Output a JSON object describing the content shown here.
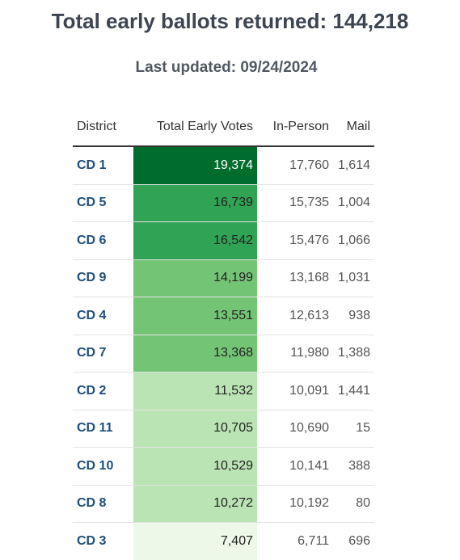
{
  "header": {
    "title": "Total early ballots returned: 144,218",
    "subtitle": "Last updated: 09/24/2024"
  },
  "colors": {
    "shade_darkest": "#006d2c",
    "shade_dark": "#31a354",
    "shade_mid": "#74c476",
    "shade_light": "#bae4b3",
    "shade_lightest": "#edf8e9",
    "text_on_dark": "#ffffff",
    "district_text": "#1f4e79"
  },
  "chart_data": {
    "type": "table",
    "title": "Total early ballots returned: 144,218",
    "subtitle": "Last updated: 09/24/2024",
    "columns": [
      "District",
      "Total Early Votes",
      "In-Person",
      "Mail"
    ],
    "rows": [
      {
        "district": "CD 1",
        "total": "19,374",
        "in_person": "17,760",
        "mail": "1,614",
        "total_value": 19374
      },
      {
        "district": "CD 5",
        "total": "16,739",
        "in_person": "15,735",
        "mail": "1,004",
        "total_value": 16739
      },
      {
        "district": "CD 6",
        "total": "16,542",
        "in_person": "15,476",
        "mail": "1,066",
        "total_value": 16542
      },
      {
        "district": "CD 9",
        "total": "14,199",
        "in_person": "13,168",
        "mail": "1,031",
        "total_value": 14199
      },
      {
        "district": "CD 4",
        "total": "13,551",
        "in_person": "12,613",
        "mail": "938",
        "total_value": 13551
      },
      {
        "district": "CD 7",
        "total": "13,368",
        "in_person": "11,980",
        "mail": "1,388",
        "total_value": 13368
      },
      {
        "district": "CD 2",
        "total": "11,532",
        "in_person": "10,091",
        "mail": "1,441",
        "total_value": 11532
      },
      {
        "district": "CD 11",
        "total": "10,705",
        "in_person": "10,690",
        "mail": "15",
        "total_value": 10705
      },
      {
        "district": "CD 10",
        "total": "10,529",
        "in_person": "10,141",
        "mail": "388",
        "total_value": 10529
      },
      {
        "district": "CD 8",
        "total": "10,272",
        "in_person": "10,192",
        "mail": "80",
        "total_value": 10272
      },
      {
        "district": "CD 3",
        "total": "7,407",
        "in_person": "6,711",
        "mail": "696",
        "total_value": 7407
      }
    ]
  }
}
